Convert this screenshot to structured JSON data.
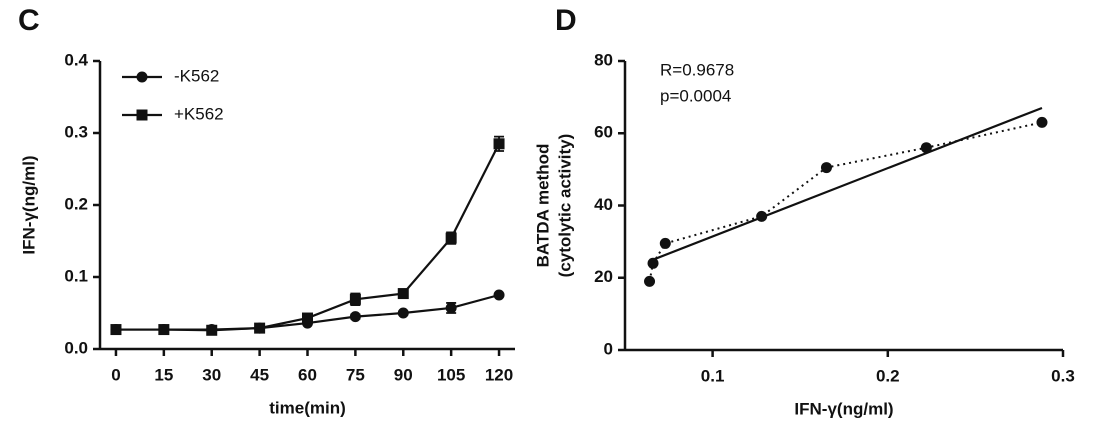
{
  "chart_data": [
    {
      "type": "line",
      "panel": "C",
      "xlabel": "time(min)",
      "ylabel": "IFN-γ(ng/ml)",
      "x": [
        0,
        15,
        30,
        45,
        60,
        75,
        90,
        105,
        120
      ],
      "xlim": [
        -5,
        125
      ],
      "xticks": [
        0,
        15,
        30,
        45,
        60,
        75,
        90,
        105,
        120
      ],
      "ylim": [
        0,
        0.4
      ],
      "yticks": [
        {
          "value": 0,
          "label": "0.0"
        },
        0.1,
        0.2,
        0.3,
        0.4
      ],
      "legend": "upper-left",
      "series": [
        {
          "name": "-K562",
          "color": "#111111",
          "marker": "circle",
          "values": [
            0.027,
            0.027,
            0.027,
            0.029,
            0.036,
            0.045,
            0.05,
            0.057,
            0.075
          ],
          "errors": [
            0.001,
            0.001,
            0.001,
            0.001,
            0.002,
            0.003,
            0.002,
            0.007,
            0.002
          ]
        },
        {
          "name": "+K562",
          "color": "#111111",
          "marker": "square",
          "values": [
            0.027,
            0.027,
            0.026,
            0.029,
            0.043,
            0.069,
            0.077,
            0.154,
            0.285
          ],
          "errors": [
            0.001,
            0.002,
            0.002,
            0.002,
            0.004,
            0.008,
            0.002,
            0.008,
            0.01
          ]
        }
      ]
    },
    {
      "type": "scatter",
      "panel": "D",
      "xlabel": "IFN-γ(ng/ml)",
      "ylabel": [
        "BATDA method",
        "(cytolytic activity)"
      ],
      "annotations": [
        "R=0.9678",
        "p=0.0004"
      ],
      "x": [
        0.064,
        0.066,
        0.073,
        0.128,
        0.165,
        0.222,
        0.288
      ],
      "values": [
        19,
        24,
        29.5,
        37,
        50.5,
        56,
        63
      ],
      "color": "#111111",
      "line_style": "dotted",
      "fit_line": {
        "x": [
          0.066,
          0.288
        ],
        "y": [
          25,
          67
        ]
      },
      "xlim": [
        0.05,
        0.3
      ],
      "xticks": [
        0.1,
        0.2,
        0.3
      ],
      "ylim": [
        0,
        80
      ],
      "yticks": [
        0,
        20,
        40,
        60,
        80
      ]
    }
  ]
}
